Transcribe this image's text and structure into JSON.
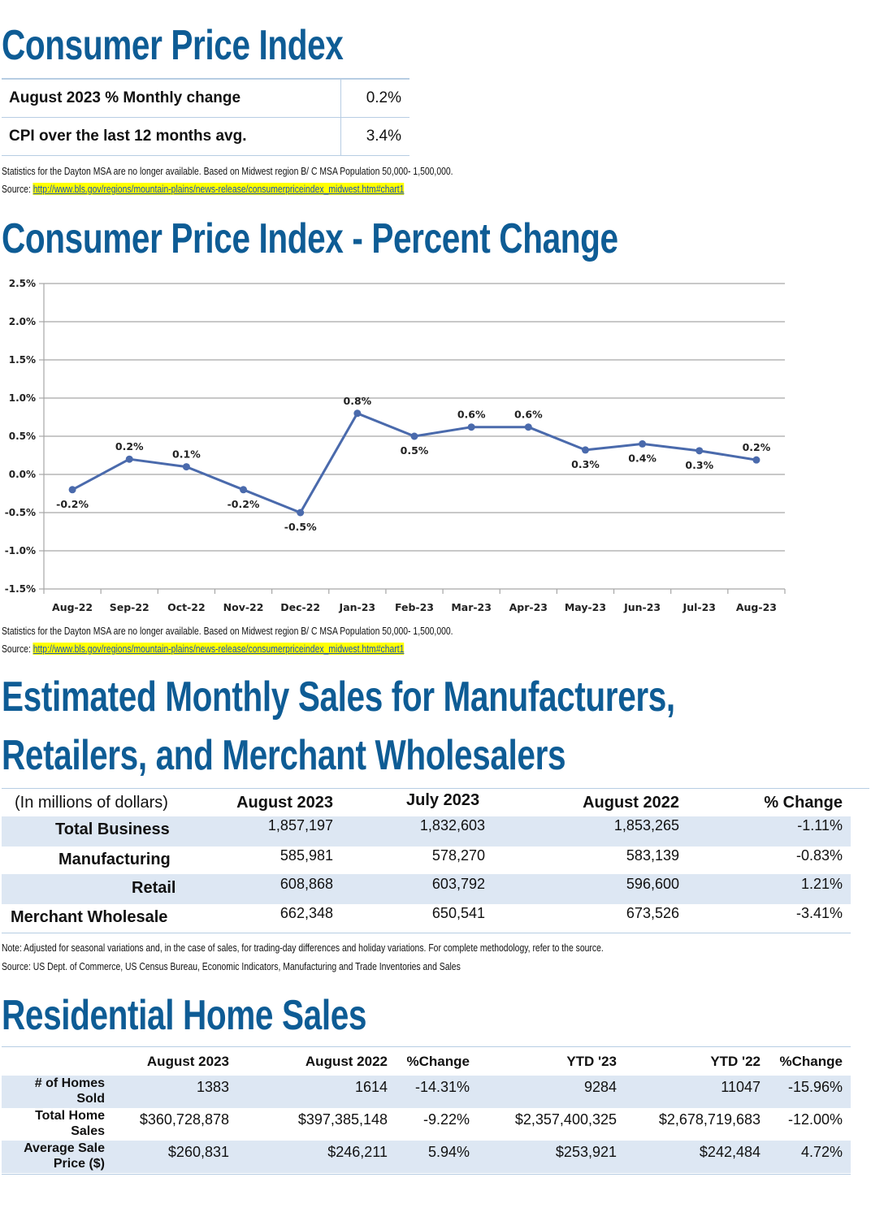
{
  "cpi": {
    "title": "Consumer Price Index",
    "rows": [
      {
        "label": "August 2023 % Monthly change",
        "value": "0.2%"
      },
      {
        "label": "CPI over the last 12 months avg.",
        "value": "3.4%"
      }
    ],
    "note": "Statistics for the Dayton MSA are no longer available. Based on Midwest region B/ C MSA Population 50,000- 1,500,000.",
    "source_prefix": "Source: ",
    "source_link": "http://www.bls.gov/regions/mountain-plains/news-release/consumerpriceindex_midwest.htm#chart1"
  },
  "cpi_chart": {
    "title": "Consumer Price Index - Percent Change",
    "note": "Statistics for the Dayton MSA are no longer available. Based on Midwest region B/ C MSA Population 50,000- 1,500,000.",
    "source_prefix": "Source: ",
    "source_link": "http://www.bls.gov/regions/mountain-plains/news-release/consumerpriceindex_midwest.htm#chart1"
  },
  "chart_data": {
    "type": "line",
    "title": "",
    "xlabel": "",
    "ylabel": "",
    "categories": [
      "Aug-22",
      "Sep-22",
      "Oct-22",
      "Nov-22",
      "Dec-22",
      "Jan-23",
      "Feb-23",
      "Mar-23",
      "Apr-23",
      "May-23",
      "Jun-23",
      "Jul-23",
      "Aug-23"
    ],
    "values": [
      -0.2,
      0.2,
      0.1,
      -0.2,
      -0.5,
      0.8,
      0.5,
      0.62,
      0.62,
      0.32,
      0.4,
      0.31,
      0.19
    ],
    "data_labels": [
      "-0.2%",
      "0.2%",
      "0.1%",
      "-0.2%",
      "-0.5%",
      "0.8%",
      "0.5%",
      "0.6%",
      "0.6%",
      "0.3%",
      "0.4%",
      "0.3%",
      "0.2%"
    ],
    "label_position": [
      "below",
      "above",
      "above",
      "below",
      "below",
      "above",
      "below",
      "above",
      "above",
      "below",
      "below",
      "below",
      "above"
    ],
    "yticks": [
      "2.5%",
      "2.0%",
      "1.5%",
      "1.0%",
      "0.5%",
      "0.0%",
      "-0.5%",
      "-1.0%",
      "-1.5%"
    ],
    "ylim": [
      -1.5,
      2.5
    ],
    "grid": true,
    "line_color": "#4a6aac"
  },
  "sales": {
    "title_line1": "Estimated Monthly Sales for Manufacturers,",
    "title_line2": "Retailers, and Merchant Wholesalers",
    "headers": [
      "(In millions of dollars)",
      "August 2023",
      "July 2023",
      "August 2022",
      "% Change"
    ],
    "rows": [
      [
        "Total Business",
        "1,857,197",
        "1,832,603",
        "1,853,265",
        "-1.11%"
      ],
      [
        "Manufacturing",
        "585,981",
        "578,270",
        "583,139",
        "-0.83%"
      ],
      [
        "Retail",
        "608,868",
        "603,792",
        "596,600",
        "1.21%"
      ],
      [
        "Merchant Wholesale",
        "662,348",
        "650,541",
        "673,526",
        "-3.41%"
      ]
    ],
    "note": "Note: Adjusted for seasonal variations and, in the case of sales, for trading-day differences and holiday variations. For complete methodology, refer to the source.",
    "source": "Source: US Dept. of Commerce, US Census Bureau, Economic Indicators, Manufacturing and Trade Inventories and Sales"
  },
  "home": {
    "title": "Residential Home Sales",
    "headers": [
      "August 2023",
      "August 2022",
      "%Change",
      "YTD '23",
      "YTD '22",
      "%Change"
    ],
    "rows": [
      {
        "label1": "# of Homes",
        "label2": "Sold",
        "values": [
          "1383",
          "1614",
          "-14.31%",
          "9284",
          "11047",
          "-15.96%"
        ]
      },
      {
        "label1": "Total Home",
        "label2": "Sales",
        "values": [
          "$360,728,878",
          "$397,385,148",
          "-9.22%",
          "$2,357,400,325",
          "$2,678,719,683",
          "-12.00%"
        ]
      },
      {
        "label1": "Average Sale",
        "label2": "Price ($)",
        "values": [
          "$260,831",
          "$246,211",
          "5.94%",
          "$253,921",
          "$242,484",
          "4.72%"
        ]
      }
    ]
  }
}
